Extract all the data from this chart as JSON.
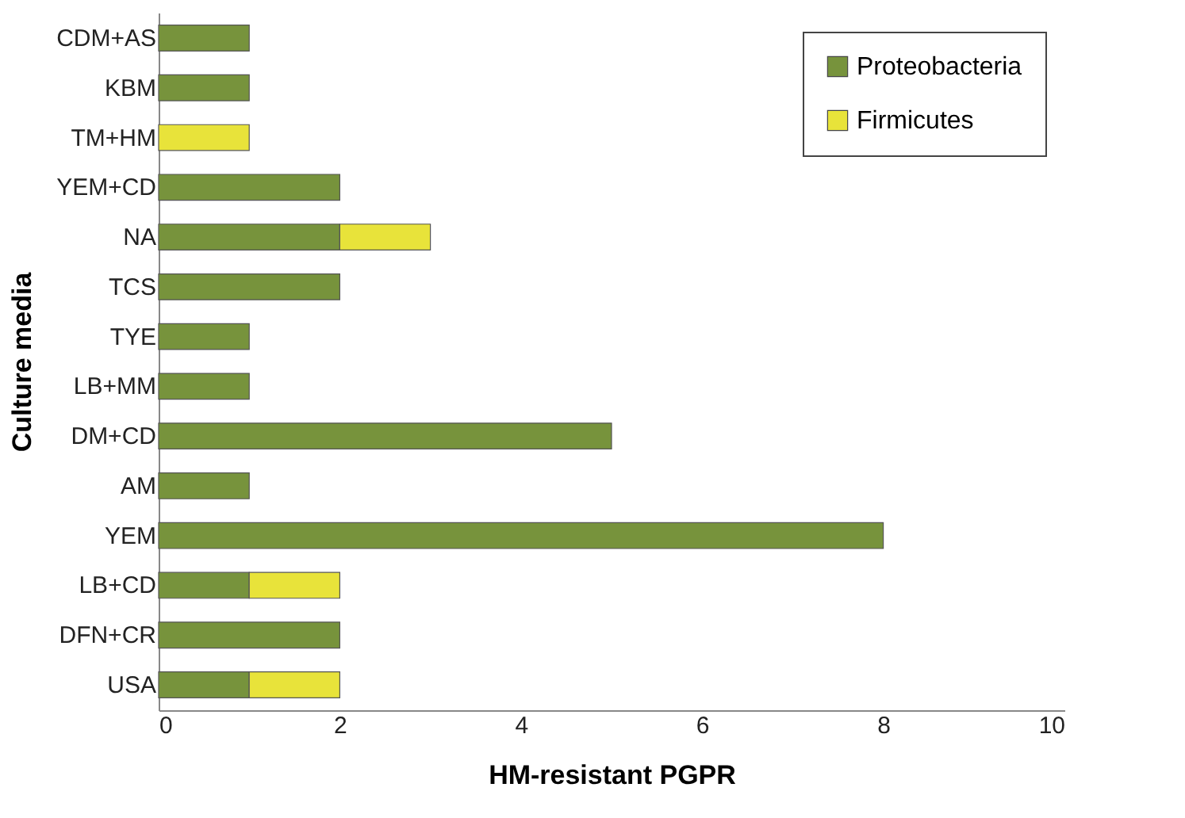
{
  "chart_data": {
    "type": "bar",
    "orientation": "horizontal",
    "stacked": true,
    "xlabel": "HM-resistant PGPR",
    "ylabel": "Culture media",
    "categories": [
      "CDM+AS",
      "KBM",
      "TM+HM",
      "YEM+CD",
      "NA",
      "TCS",
      "TYE",
      "LB+MM",
      "DM+CD",
      "AM",
      "YEM",
      "LB+CD",
      "DFN+CR",
      "USA"
    ],
    "series": [
      {
        "name": "Proteobacteria",
        "color": "#77933c",
        "values": [
          1,
          1,
          0,
          2,
          2,
          2,
          1,
          1,
          5,
          1,
          8,
          1,
          2,
          1
        ]
      },
      {
        "name": "Firmicutes",
        "color": "#e8e33a",
        "values": [
          0,
          0,
          1,
          0,
          1,
          0,
          0,
          0,
          0,
          0,
          0,
          1,
          0,
          1
        ]
      }
    ],
    "xlim": [
      0,
      10
    ],
    "xticks": [
      0,
      2,
      4,
      6,
      8,
      10
    ],
    "grid": false,
    "legend": "top right"
  }
}
